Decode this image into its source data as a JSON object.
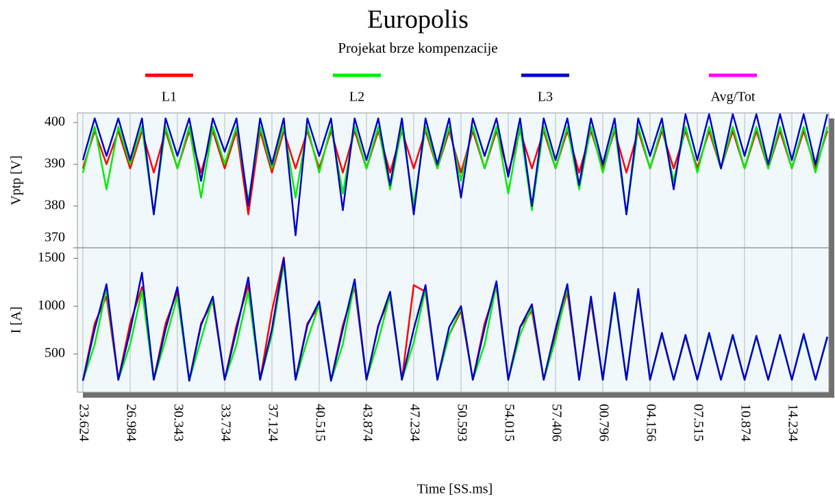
{
  "chart_data": {
    "type": "line",
    "title": "Europolis",
    "subtitle": "Projekat brze kompenzacije",
    "x_label": "Time [SS.ms]",
    "grid": "x",
    "legend": [
      {
        "name": "L1",
        "color": "#ff0000"
      },
      {
        "name": "L2",
        "color": "#00ee00"
      },
      {
        "name": "L3",
        "color": "#0000cc"
      },
      {
        "name": "Avg/Tot",
        "color": "#ff00ff"
      }
    ],
    "categories": [
      "23.624",
      null,
      null,
      null,
      "26.984",
      null,
      null,
      null,
      "30.343",
      null,
      null,
      null,
      "33.734",
      null,
      null,
      null,
      "37.124",
      null,
      null,
      null,
      "40.515",
      null,
      null,
      null,
      "43.874",
      null,
      null,
      null,
      "47.234",
      null,
      null,
      null,
      "50.593",
      null,
      null,
      null,
      "54.015",
      null,
      null,
      null,
      "57.406",
      null,
      null,
      null,
      "00.796",
      null,
      null,
      null,
      "04.156",
      null,
      null,
      null,
      "07.515",
      null,
      null,
      null,
      "10.874",
      null,
      null,
      null,
      "14.234",
      null,
      null,
      null
    ],
    "panels": [
      {
        "y_label": "Vptp [V]",
        "ylim": [
          370,
          402.3
        ],
        "yticks": [
          370,
          380,
          390,
          400
        ],
        "series": [
          {
            "color": "#ff0000",
            "values": [
              389,
              398,
              390,
              398,
              389,
              398,
              388,
              398,
              389,
              398,
              388,
              398,
              389,
              398,
              378,
              398,
              388,
              398,
              389,
              398,
              389,
              398,
              388,
              398,
              389,
              398,
              388,
              398,
              389,
              398,
              389,
              398,
              388,
              398,
              389,
              398,
              388,
              398,
              389,
              398,
              389,
              398,
              388,
              398,
              389,
              398,
              388,
              398,
              389,
              398,
              389,
              398,
              389,
              398,
              389,
              398,
              389,
              398,
              389,
              398,
              389,
              398,
              389,
              398
            ]
          },
          {
            "color": "#00ee00",
            "values": [
              388,
              399,
              384,
              399,
              390,
              399,
              378,
              399,
              389,
              399,
              382,
              399,
              390,
              399,
              381,
              399,
              389,
              399,
              382,
              399,
              388,
              399,
              383,
              399,
              389,
              399,
              384,
              399,
              380,
              399,
              389,
              399,
              386,
              399,
              389,
              399,
              383,
              399,
              379,
              399,
              389,
              399,
              384,
              399,
              388,
              399,
              378,
              399,
              389,
              399,
              386,
              399,
              388,
              399,
              389,
              399,
              389,
              399,
              389,
              399,
              389,
              399,
              388,
              399
            ]
          },
          {
            "color": "#0000cc",
            "values": [
              391,
              401,
              392,
              401,
              391,
              401,
              378,
              401,
              392,
              401,
              386,
              401,
              393,
              401,
              380,
              401,
              390,
              401,
              373,
              401,
              392,
              401,
              379,
              401,
              391,
              401,
              385,
              401,
              378,
              401,
              390,
              401,
              382,
              401,
              392,
              401,
              387,
              401,
              380,
              401,
              391,
              401,
              385,
              401,
              390,
              401,
              378,
              401,
              392,
              401,
              384,
              402,
              391,
              402,
              389,
              402,
              392,
              402,
              390,
              402,
              391,
              402,
              390,
              402
            ]
          }
        ]
      },
      {
        "y_label": "I [A]",
        "ylim": [
          100,
          1610
        ],
        "yticks": [
          500,
          1000,
          1500
        ],
        "series": [
          {
            "color": "#ff0000",
            "values": [
              220,
              820,
              1100,
              230,
              820,
              1200,
              230,
              820,
              1150,
              220,
              820,
              1050,
              230,
              800,
              1220,
              230,
              950,
              1510,
              230,
              820,
              1000,
              220,
              800,
              1200,
              230,
              800,
              1100,
              230,
              1220,
              1150,
              230,
              700,
              950,
              230,
              820,
              1200,
              230,
              780,
              950,
              230,
              700,
              1150,
              230,
              1050,
              230,
              1100,
              230,
              1150,
              230,
              700,
              230,
              680,
              230,
              700,
              230,
              690,
              230,
              680,
              230,
              690,
              230,
              700,
              230,
              670
            ]
          },
          {
            "color": "#00ee00",
            "values": [
              220,
              600,
              1180,
              230,
              600,
              1160,
              230,
              650,
              1100,
              220,
              650,
              1080,
              230,
              600,
              1150,
              230,
              700,
              1450,
              230,
              650,
              1020,
              220,
              600,
              1250,
              230,
              640,
              1120,
              230,
              620,
              1180,
              230,
              700,
              980,
              230,
              600,
              1230,
              230,
              700,
              990,
              230,
              650,
              1200,
              230,
              1080,
              230,
              1100,
              230,
              1160,
              230,
              710,
              230,
              690,
              230,
              700,
              230,
              690,
              230,
              680,
              230,
              690,
              230,
              690,
              230,
              670
            ]
          },
          {
            "color": "#0000cc",
            "values": [
              220,
              760,
              1230,
              230,
              740,
              1350,
              230,
              760,
              1200,
              220,
              800,
              1100,
              230,
              750,
              1300,
              230,
              760,
              1500,
              230,
              800,
              1050,
              220,
              760,
              1280,
              230,
              790,
              1150,
              230,
              760,
              1220,
              230,
              780,
              1000,
              230,
              770,
              1260,
              230,
              780,
              1020,
              230,
              760,
              1230,
              230,
              1100,
              230,
              1140,
              230,
              1180,
              230,
              720,
              230,
              700,
              230,
              720,
              230,
              700,
              230,
              690,
              230,
              700,
              230,
              710,
              230,
              680
            ]
          }
        ]
      }
    ]
  }
}
